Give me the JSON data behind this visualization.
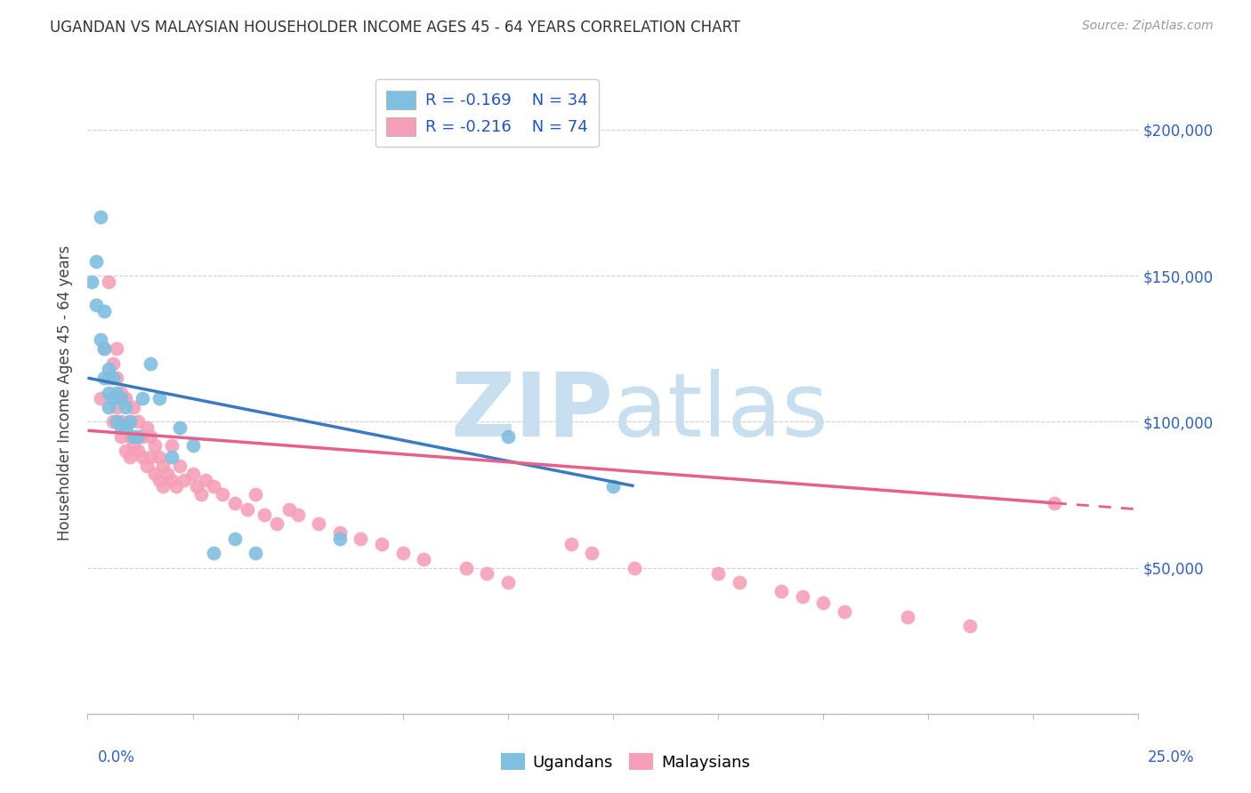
{
  "title": "UGANDAN VS MALAYSIAN HOUSEHOLDER INCOME AGES 45 - 64 YEARS CORRELATION CHART",
  "source": "Source: ZipAtlas.com",
  "ylabel": "Householder Income Ages 45 - 64 years",
  "xlim": [
    0.0,
    0.25
  ],
  "ylim": [
    0,
    220000
  ],
  "yticks": [
    0,
    50000,
    100000,
    150000,
    200000
  ],
  "ytick_labels": [
    "",
    "$50,000",
    "$100,000",
    "$150,000",
    "$200,000"
  ],
  "ugandan_color": "#7fbfdf",
  "malaysian_color": "#f5a0b8",
  "trend_ugandan_color": "#3a7abf",
  "trend_malaysian_color": "#e8608a",
  "legend_r_ugandan": "R = -0.169",
  "legend_n_ugandan": "N = 34",
  "legend_r_malaysian": "R = -0.216",
  "legend_n_malaysian": "N = 74",
  "ugandan_x": [
    0.001,
    0.002,
    0.002,
    0.003,
    0.003,
    0.004,
    0.004,
    0.004,
    0.005,
    0.005,
    0.005,
    0.006,
    0.006,
    0.007,
    0.007,
    0.008,
    0.008,
    0.009,
    0.009,
    0.01,
    0.011,
    0.012,
    0.013,
    0.015,
    0.017,
    0.02,
    0.022,
    0.025,
    0.03,
    0.035,
    0.04,
    0.06,
    0.1,
    0.125
  ],
  "ugandan_y": [
    148000,
    155000,
    140000,
    170000,
    128000,
    138000,
    125000,
    115000,
    118000,
    110000,
    105000,
    115000,
    108000,
    110000,
    100000,
    108000,
    98000,
    105000,
    98000,
    100000,
    95000,
    95000,
    108000,
    120000,
    108000,
    88000,
    98000,
    92000,
    55000,
    60000,
    55000,
    60000,
    95000,
    78000
  ],
  "malaysian_x": [
    0.003,
    0.004,
    0.005,
    0.005,
    0.006,
    0.006,
    0.007,
    0.007,
    0.007,
    0.008,
    0.008,
    0.008,
    0.009,
    0.009,
    0.009,
    0.01,
    0.01,
    0.01,
    0.011,
    0.011,
    0.012,
    0.012,
    0.013,
    0.013,
    0.014,
    0.014,
    0.015,
    0.015,
    0.016,
    0.016,
    0.017,
    0.017,
    0.018,
    0.018,
    0.019,
    0.02,
    0.02,
    0.021,
    0.022,
    0.023,
    0.025,
    0.026,
    0.027,
    0.028,
    0.03,
    0.032,
    0.035,
    0.038,
    0.04,
    0.042,
    0.045,
    0.048,
    0.05,
    0.055,
    0.06,
    0.065,
    0.07,
    0.075,
    0.08,
    0.09,
    0.095,
    0.1,
    0.115,
    0.12,
    0.13,
    0.15,
    0.155,
    0.165,
    0.17,
    0.175,
    0.18,
    0.195,
    0.21,
    0.23
  ],
  "malaysian_y": [
    108000,
    125000,
    115000,
    148000,
    100000,
    120000,
    105000,
    115000,
    125000,
    110000,
    100000,
    95000,
    108000,
    98000,
    90000,
    100000,
    95000,
    88000,
    105000,
    92000,
    100000,
    90000,
    95000,
    88000,
    98000,
    85000,
    95000,
    88000,
    92000,
    82000,
    88000,
    80000,
    85000,
    78000,
    82000,
    80000,
    92000,
    78000,
    85000,
    80000,
    82000,
    78000,
    75000,
    80000,
    78000,
    75000,
    72000,
    70000,
    75000,
    68000,
    65000,
    70000,
    68000,
    65000,
    62000,
    60000,
    58000,
    55000,
    53000,
    50000,
    48000,
    45000,
    58000,
    55000,
    50000,
    48000,
    45000,
    42000,
    40000,
    38000,
    35000,
    33000,
    30000,
    72000
  ],
  "ug_trend_x_end": 0.13,
  "my_trend_solid_end": 0.23,
  "background_color": "#ffffff",
  "grid_color": "#d0d0d0",
  "watermark_zip": "ZIP",
  "watermark_atlas": "atlas",
  "watermark_color": "#c8dff0",
  "watermark_fontsize": 72
}
